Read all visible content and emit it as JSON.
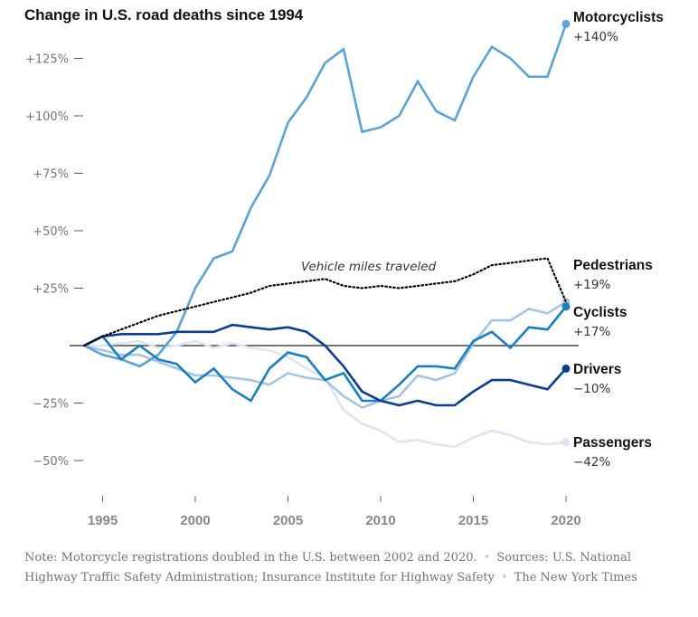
{
  "title": "Change in U.S. road deaths since 1994",
  "note": {
    "text": "Note: Motorcycle registrations doubled in the U.S. between 2002 and 2020.",
    "sources": "Sources: U.S. National Highway Traffic Safety Administration; Insurance Institute for Highway Safety",
    "credit": "The New York Times",
    "separator": "•"
  },
  "chart_data": {
    "type": "line",
    "title": "Change in U.S. road deaths since 1994",
    "xlabel": "",
    "ylabel": "",
    "x": [
      1994,
      1995,
      1996,
      1997,
      1998,
      1999,
      2000,
      2001,
      2002,
      2003,
      2004,
      2005,
      2006,
      2007,
      2008,
      2009,
      2010,
      2011,
      2012,
      2013,
      2014,
      2015,
      2016,
      2017,
      2018,
      2019,
      2020
    ],
    "xlim": [
      1994,
      2020
    ],
    "ylim": [
      -60,
      145
    ],
    "x_ticks": [
      1995,
      2000,
      2005,
      2010,
      2015,
      2020
    ],
    "x_tick_labels": [
      "1995",
      "2000",
      "2005",
      "2010",
      "2015",
      "2020"
    ],
    "y_ticks": [
      125,
      100,
      75,
      50,
      25,
      -25,
      -50
    ],
    "y_tick_labels": [
      "+125%",
      "+100%",
      "+75%",
      "+50%",
      "+25%",
      "−25%",
      "−50%"
    ],
    "baseline": 0,
    "grid": false,
    "legend": "direct-labels-right",
    "series": [
      {
        "name": "Motorcyclists",
        "end_label": "+140%",
        "color": "#5aa3d6",
        "values": [
          0,
          -4,
          -6,
          -9,
          -4,
          6,
          25,
          38,
          41,
          60,
          74,
          97,
          108,
          123,
          129,
          93,
          95,
          100,
          115,
          102,
          98,
          117,
          130,
          125,
          117,
          117,
          140
        ]
      },
      {
        "name": "Pedestrians",
        "end_label": "+19%",
        "color": "#a9c3e4",
        "values": [
          0,
          -2,
          -4,
          -4,
          -7,
          -10,
          -13,
          -13,
          -14,
          -15,
          -17,
          -12,
          -14,
          -15,
          -22,
          -27,
          -24,
          -22,
          -13,
          -15,
          -12,
          1,
          11,
          11,
          16,
          14,
          19
        ]
      },
      {
        "name": "Cyclists",
        "end_label": "+17%",
        "color": "#1a7fc1",
        "values": [
          0,
          4,
          -6,
          0,
          -6,
          -8,
          -16,
          -10,
          -19,
          -24,
          -10,
          -3,
          -5,
          -15,
          -12,
          -24,
          -24,
          -17,
          -9,
          -9,
          -10,
          2,
          6,
          -1,
          8,
          7,
          17
        ]
      },
      {
        "name": "Drivers",
        "end_label": "−10%",
        "color": "#0b3d91",
        "values": [
          0,
          4,
          5,
          5,
          5,
          6,
          6,
          6,
          9,
          8,
          7,
          8,
          6,
          0,
          -9,
          -20,
          -24,
          -26,
          -24,
          -26,
          -26,
          -20,
          -15,
          -15,
          -17,
          -19,
          -10
        ]
      },
      {
        "name": "Passengers",
        "end_label": "−42%",
        "color": "#dce5f2",
        "values": [
          0,
          0,
          1,
          2,
          -1,
          0,
          2,
          -1,
          1,
          -1,
          -2,
          -5,
          -10,
          -14,
          -28,
          -34,
          -37,
          -42,
          -41,
          -43,
          -44,
          -40,
          -37,
          -39,
          -42,
          -43,
          -42
        ]
      },
      {
        "name": "Vehicle miles traveled",
        "color": "#000000",
        "style": "dotted",
        "values": [
          0,
          4,
          7,
          10,
          13,
          15,
          17,
          19,
          21,
          23,
          26,
          27,
          28,
          29,
          26,
          25,
          26,
          25,
          26,
          27,
          28,
          31,
          35,
          36,
          37,
          38,
          19
        ]
      }
    ],
    "annotations": [
      {
        "text": "Vehicle miles traveled",
        "x": 2008,
        "y": 34
      }
    ]
  }
}
